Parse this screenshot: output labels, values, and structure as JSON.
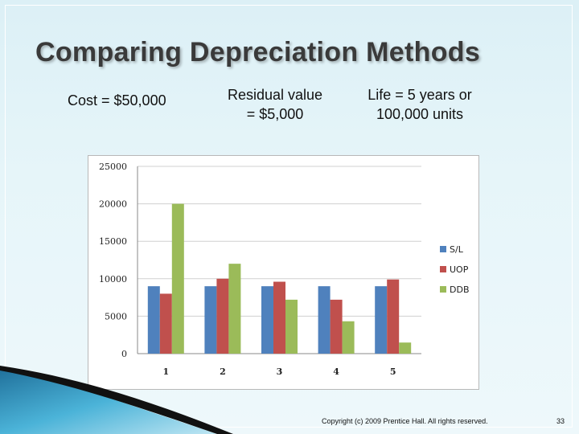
{
  "slide": {
    "title": "Comparing Depreciation Methods",
    "cost": "Cost = $50,000",
    "residual": [
      "Residual value",
      "= $5,000"
    ],
    "life": [
      "Life  = 5 years or",
      "100,000 units"
    ],
    "copyright": "Copyright (c) 2009 Prentice Hall. All rights reserved.",
    "page_number": "33"
  },
  "colors": {
    "background": "#dcf0f6",
    "title": "#3a3a3a",
    "s_l": "#4f81bd",
    "uop": "#c0504d",
    "ddb": "#9bbb59"
  },
  "chart_data": {
    "type": "bar",
    "categories": [
      "1",
      "2",
      "3",
      "4",
      "5"
    ],
    "series": [
      {
        "name": "S/L",
        "values": [
          9000,
          9000,
          9000,
          9000,
          9000
        ]
      },
      {
        "name": "UOP",
        "values": [
          8000,
          10000,
          9600,
          7200,
          9900
        ]
      },
      {
        "name": "DDB",
        "values": [
          20000,
          12000,
          7200,
          4320,
          1480
        ]
      }
    ],
    "yticks": [
      "0",
      "5000",
      "10000",
      "15000",
      "20000",
      "25000"
    ],
    "ylim": [
      0,
      25000
    ],
    "grid": true,
    "legend_position": "right",
    "title": "",
    "xlabel": "",
    "ylabel": ""
  }
}
